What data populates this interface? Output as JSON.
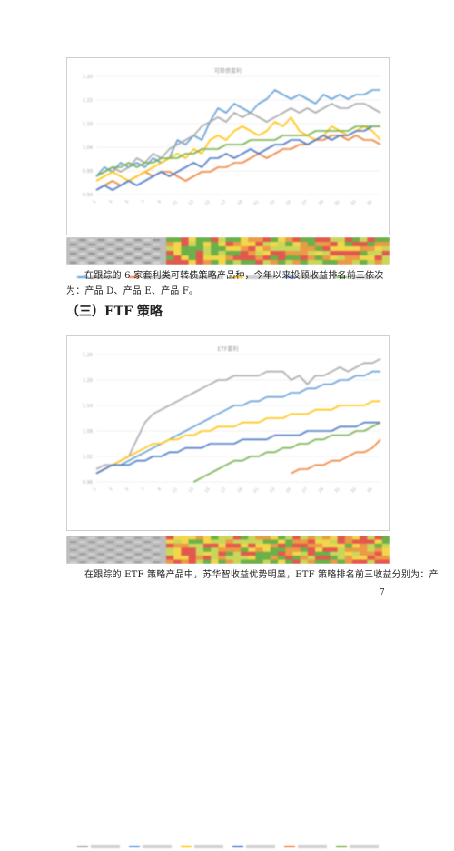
{
  "paragraphs": {
    "p1": "在跟踪的 6 家套利类可转债策略产品种，今年以来投顾收益排名前三依次为：产品 D、产品 E、产品 F。",
    "p2": "在跟踪的 ETF 策略产品中，苏华智收益优势明显，ETF 策略排名前三收益分别为：产"
  },
  "section_heading": "（三）ETF 策略",
  "page_number": "7",
  "colors": {
    "blue": "#5b9bd5",
    "orange": "#ed7d31",
    "gray": "#a5a5a5",
    "yellow": "#ffc000",
    "navy": "#4472c4",
    "green": "#70ad47",
    "heat_red": "#e2584f",
    "heat_yellow": "#f3d64a",
    "heat_green": "#6bb04a"
  },
  "charts": {
    "chart1": {
      "title": "可转债套利",
      "series_colors": [
        "blue",
        "orange",
        "gray",
        "yellow",
        "navy",
        "green"
      ]
    },
    "chart2": {
      "title": "ETF套利",
      "series_colors": [
        "gray",
        "blue",
        "yellow",
        "navy",
        "orange",
        "green"
      ]
    }
  },
  "chart_data": [
    {
      "type": "line",
      "title": "可转债套利",
      "x": [
        "1",
        "2",
        "3",
        "4",
        "5",
        "6",
        "7",
        "8",
        "9",
        "10",
        "11",
        "12",
        "13",
        "14",
        "15",
        "16",
        "17",
        "18",
        "19",
        "20",
        "21",
        "22",
        "23",
        "24",
        "25",
        "26",
        "27",
        "28",
        "29",
        "30",
        "31",
        "32",
        "33",
        "34",
        "35",
        "36"
      ],
      "ylim": [
        0.94,
        1.2
      ],
      "series": [
        {
          "color": "#5b9bd5",
          "values": [
            0.98,
            1.0,
            0.99,
            1.01,
            1.0,
            1.01,
            1.0,
            1.02,
            1.01,
            1.02,
            1.06,
            1.05,
            1.07,
            1.06,
            1.1,
            1.13,
            1.12,
            1.14,
            1.13,
            1.12,
            1.14,
            1.15,
            1.17,
            1.16,
            1.15,
            1.16,
            1.15,
            1.14,
            1.16,
            1.15,
            1.16,
            1.15,
            1.16,
            1.16,
            1.17,
            1.17
          ]
        },
        {
          "color": "#ed7d31",
          "values": [
            0.95,
            0.96,
            0.97,
            0.96,
            0.97,
            0.98,
            0.99,
            0.98,
            0.99,
            0.99,
            0.98,
            0.97,
            0.98,
            0.99,
            0.99,
            1.0,
            1.0,
            1.01,
            1.01,
            1.02,
            1.03,
            1.02,
            1.03,
            1.04,
            1.04,
            1.05,
            1.05,
            1.06,
            1.06,
            1.07,
            1.07,
            1.06,
            1.07,
            1.06,
            1.06,
            1.05
          ]
        },
        {
          "color": "#a5a5a5",
          "values": [
            0.98,
            0.99,
            1.0,
            0.99,
            1.0,
            1.02,
            1.01,
            1.03,
            1.02,
            1.04,
            1.05,
            1.06,
            1.07,
            1.09,
            1.1,
            1.11,
            1.1,
            1.12,
            1.11,
            1.12,
            1.11,
            1.1,
            1.11,
            1.12,
            1.13,
            1.12,
            1.13,
            1.12,
            1.13,
            1.14,
            1.13,
            1.13,
            1.14,
            1.14,
            1.13,
            1.12
          ]
        },
        {
          "color": "#ffc000",
          "values": [
            0.97,
            0.98,
            0.99,
            0.98,
            0.97,
            0.98,
            0.99,
            1.0,
            1.01,
            1.02,
            1.03,
            1.02,
            1.04,
            1.03,
            1.06,
            1.07,
            1.06,
            1.08,
            1.09,
            1.08,
            1.07,
            1.08,
            1.1,
            1.09,
            1.11,
            1.08,
            1.07,
            1.06,
            1.07,
            1.09,
            1.08,
            1.07,
            1.08,
            1.09,
            1.08,
            1.06
          ]
        },
        {
          "color": "#4472c4",
          "values": [
            0.95,
            0.96,
            0.95,
            0.96,
            0.97,
            0.96,
            0.97,
            0.98,
            0.99,
            0.98,
            0.99,
            1.0,
            1.01,
            1.0,
            1.02,
            1.02,
            1.03,
            1.02,
            1.03,
            1.04,
            1.03,
            1.04,
            1.05,
            1.05,
            1.06,
            1.06,
            1.05,
            1.06,
            1.07,
            1.06,
            1.07,
            1.07,
            1.08,
            1.08,
            1.09,
            1.09
          ]
        },
        {
          "color": "#70ad47",
          "values": [
            0.98,
            0.99,
            1.0,
            1.0,
            1.01,
            1.0,
            1.01,
            1.01,
            1.02,
            1.02,
            1.02,
            1.03,
            1.03,
            1.04,
            1.04,
            1.04,
            1.05,
            1.05,
            1.05,
            1.06,
            1.06,
            1.06,
            1.06,
            1.07,
            1.07,
            1.07,
            1.07,
            1.08,
            1.08,
            1.08,
            1.08,
            1.08,
            1.09,
            1.09,
            1.09,
            1.09
          ]
        }
      ]
    },
    {
      "type": "line",
      "title": "ETF套利",
      "x": [
        "1",
        "2",
        "3",
        "4",
        "5",
        "6",
        "7",
        "8",
        "9",
        "10",
        "11",
        "12",
        "13",
        "14",
        "15",
        "16",
        "17",
        "18",
        "19",
        "20",
        "21",
        "22",
        "23",
        "24",
        "25",
        "26",
        "27",
        "28",
        "29",
        "30",
        "31",
        "32",
        "33",
        "34",
        "35",
        "36"
      ],
      "ylim": [
        0.96,
        1.26
      ],
      "series": [
        {
          "color": "#a5a5a5",
          "values": [
            0.99,
            1.0,
            1.0,
            1.01,
            1.02,
            1.06,
            1.1,
            1.12,
            1.13,
            1.14,
            1.15,
            1.16,
            1.17,
            1.18,
            1.19,
            1.2,
            1.2,
            1.21,
            1.21,
            1.21,
            1.21,
            1.22,
            1.22,
            1.22,
            1.2,
            1.21,
            1.19,
            1.21,
            1.21,
            1.22,
            1.23,
            1.22,
            1.23,
            1.24,
            1.24,
            1.25
          ]
        },
        {
          "color": "#5b9bd5",
          "values": [
            0.98,
            0.99,
            1.0,
            1.0,
            1.01,
            1.02,
            1.03,
            1.04,
            1.05,
            1.06,
            1.07,
            1.08,
            1.09,
            1.1,
            1.11,
            1.12,
            1.13,
            1.14,
            1.14,
            1.15,
            1.15,
            1.16,
            1.16,
            1.16,
            1.17,
            1.17,
            1.18,
            1.18,
            1.19,
            1.19,
            1.2,
            1.2,
            1.21,
            1.21,
            1.22,
            1.22
          ]
        },
        {
          "color": "#ffc000",
          "values": [
            0.98,
            0.99,
            1.0,
            1.01,
            1.02,
            1.03,
            1.04,
            1.05,
            1.05,
            1.06,
            1.06,
            1.07,
            1.07,
            1.08,
            1.08,
            1.09,
            1.09,
            1.09,
            1.1,
            1.1,
            1.1,
            1.11,
            1.11,
            1.11,
            1.12,
            1.12,
            1.12,
            1.13,
            1.13,
            1.13,
            1.14,
            1.14,
            1.14,
            1.14,
            1.15,
            1.15
          ]
        },
        {
          "color": "#4472c4",
          "values": [
            0.98,
            0.99,
            1.0,
            1.0,
            1.0,
            1.01,
            1.01,
            1.02,
            1.02,
            1.03,
            1.03,
            1.04,
            1.04,
            1.04,
            1.05,
            1.05,
            1.05,
            1.05,
            1.06,
            1.06,
            1.06,
            1.06,
            1.07,
            1.07,
            1.07,
            1.07,
            1.08,
            1.08,
            1.08,
            1.08,
            1.09,
            1.09,
            1.09,
            1.1,
            1.1,
            1.1
          ]
        },
        {
          "color": "#ed7d31",
          "values": [
            null,
            null,
            null,
            null,
            null,
            null,
            null,
            null,
            null,
            null,
            null,
            null,
            null,
            null,
            null,
            null,
            null,
            null,
            null,
            null,
            null,
            null,
            null,
            null,
            0.98,
            0.99,
            0.99,
            1.0,
            1.0,
            1.01,
            1.01,
            1.02,
            1.03,
            1.03,
            1.04,
            1.06
          ]
        },
        {
          "color": "#70ad47",
          "values": [
            null,
            null,
            null,
            null,
            null,
            null,
            null,
            null,
            null,
            null,
            null,
            null,
            0.96,
            0.97,
            0.98,
            0.99,
            1.0,
            1.01,
            1.01,
            1.02,
            1.02,
            1.03,
            1.03,
            1.04,
            1.04,
            1.05,
            1.05,
            1.06,
            1.06,
            1.07,
            1.07,
            1.07,
            1.08,
            1.08,
            1.09,
            1.1
          ]
        }
      ]
    }
  ]
}
